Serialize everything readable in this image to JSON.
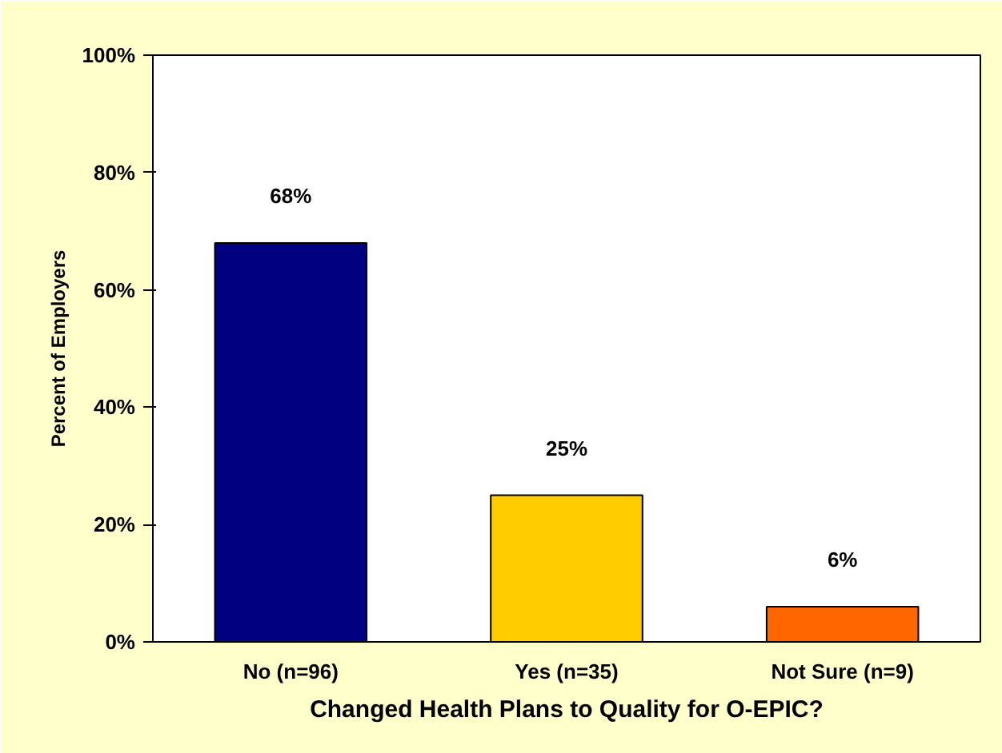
{
  "chart_data": {
    "type": "bar",
    "xlabel": "Changed Health Plans to Quality for O-EPIC?",
    "ylabel": "Percent of Employers",
    "categories": [
      "No (n=96)",
      "Yes (n=35)",
      "Not Sure (n=9)"
    ],
    "values": [
      68,
      25,
      6
    ],
    "colors": [
      "#000080",
      "#ffcc00",
      "#ff6600"
    ],
    "value_labels": [
      "68%",
      "25%",
      "6%"
    ],
    "ylim": [
      0,
      100
    ],
    "yticks": [
      {
        "value": 0,
        "label": "0%"
      },
      {
        "value": 20,
        "label": "20%"
      },
      {
        "value": 40,
        "label": "40%"
      },
      {
        "value": 60,
        "label": "60%"
      },
      {
        "value": 80,
        "label": "80%"
      },
      {
        "value": 100,
        "label": "100%"
      }
    ],
    "grid": false
  }
}
